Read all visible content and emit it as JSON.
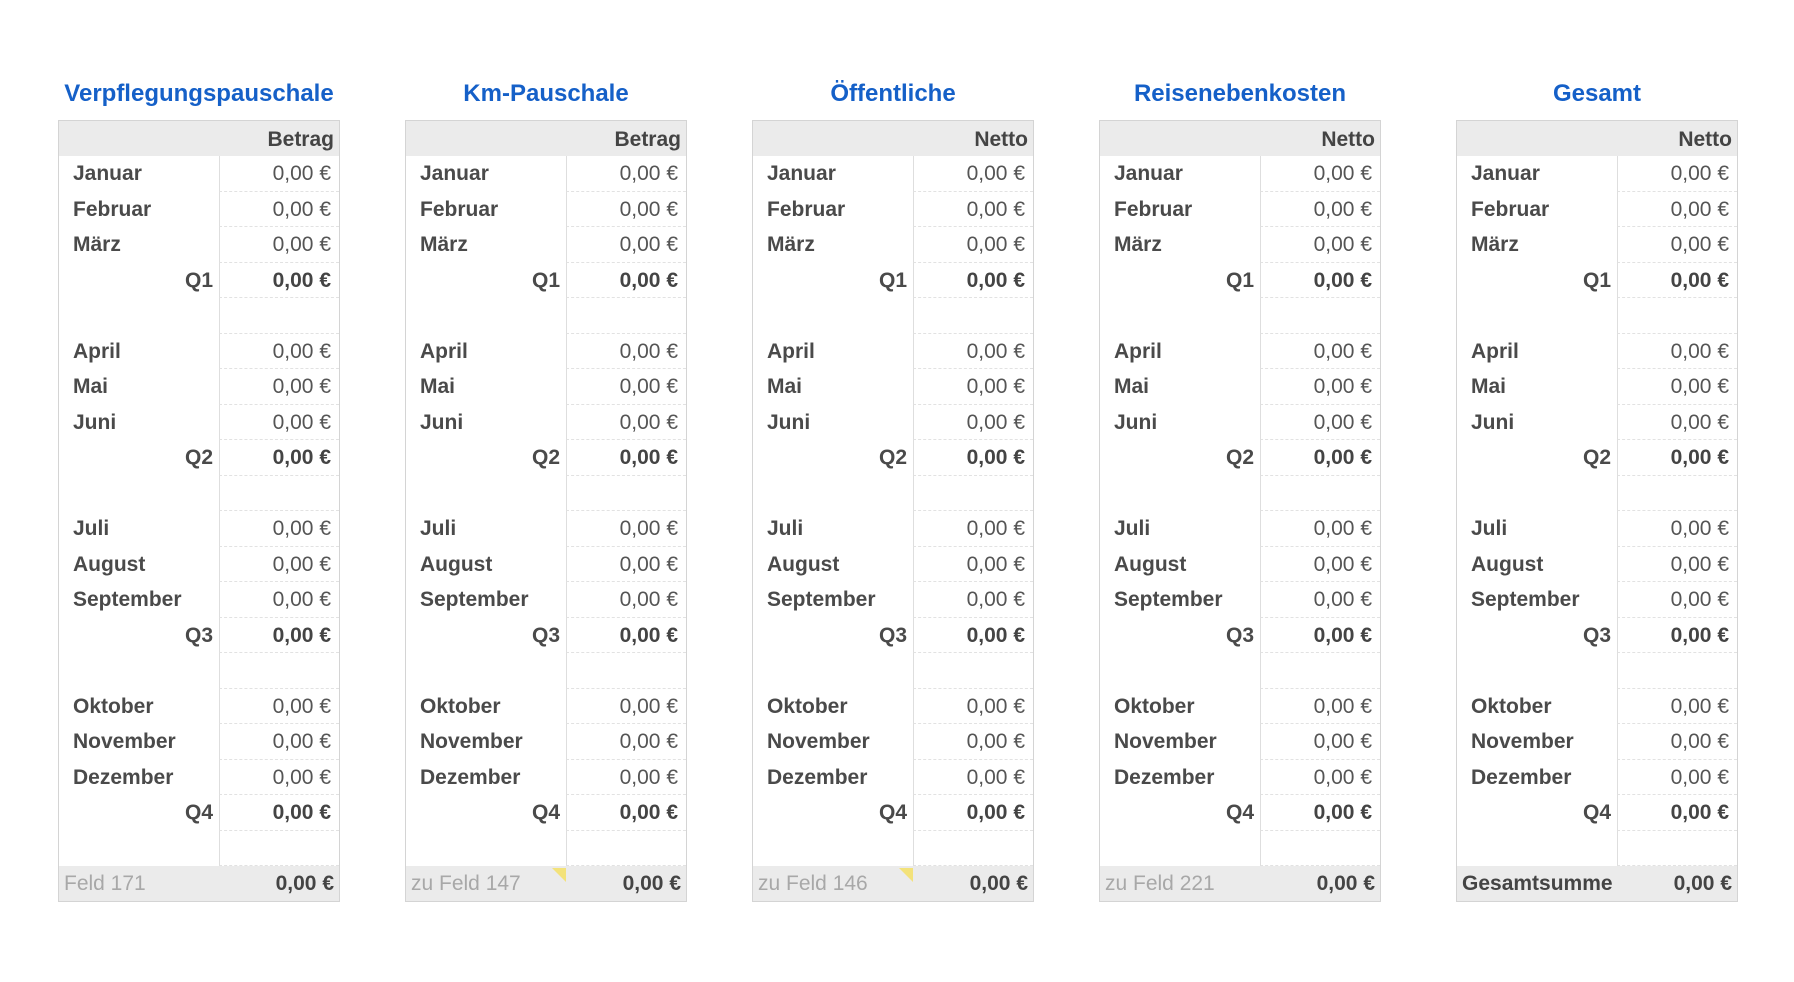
{
  "tables": [
    {
      "title": "Verpflegungspauschale",
      "header": "Betrag",
      "quarters": [
        {
          "months": [
            {
              "label": "Januar",
              "value": "0,00 €"
            },
            {
              "label": "Februar",
              "value": "0,00 €"
            },
            {
              "label": "März",
              "value": "0,00 €"
            }
          ],
          "label": "Q1",
          "value": "0,00 €"
        },
        {
          "months": [
            {
              "label": "April",
              "value": "0,00 €"
            },
            {
              "label": "Mai",
              "value": "0,00 €"
            },
            {
              "label": "Juni",
              "value": "0,00 €"
            }
          ],
          "label": "Q2",
          "value": "0,00 €"
        },
        {
          "months": [
            {
              "label": "Juli",
              "value": "0,00 €"
            },
            {
              "label": "August",
              "value": "0,00 €"
            },
            {
              "label": "September",
              "value": "0,00 €"
            }
          ],
          "label": "Q3",
          "value": "0,00 €"
        },
        {
          "months": [
            {
              "label": "Oktober",
              "value": "0,00 €"
            },
            {
              "label": "November",
              "value": "0,00 €"
            },
            {
              "label": "Dezember",
              "value": "0,00 €"
            }
          ],
          "label": "Q4",
          "value": "0,00 €"
        }
      ],
      "footer": {
        "label": "Feld 171",
        "value": "0,00 €"
      }
    },
    {
      "title": "Km-Pauschale",
      "header": "Betrag",
      "quarters": [
        {
          "months": [
            {
              "label": "Januar",
              "value": "0,00 €"
            },
            {
              "label": "Februar",
              "value": "0,00 €"
            },
            {
              "label": "März",
              "value": "0,00 €"
            }
          ],
          "label": "Q1",
          "value": "0,00 €"
        },
        {
          "months": [
            {
              "label": "April",
              "value": "0,00 €"
            },
            {
              "label": "Mai",
              "value": "0,00 €"
            },
            {
              "label": "Juni",
              "value": "0,00 €"
            }
          ],
          "label": "Q2",
          "value": "0,00 €"
        },
        {
          "months": [
            {
              "label": "Juli",
              "value": "0,00 €"
            },
            {
              "label": "August",
              "value": "0,00 €"
            },
            {
              "label": "September",
              "value": "0,00 €"
            }
          ],
          "label": "Q3",
          "value": "0,00 €"
        },
        {
          "months": [
            {
              "label": "Oktober",
              "value": "0,00 €"
            },
            {
              "label": "November",
              "value": "0,00 €"
            },
            {
              "label": "Dezember",
              "value": "0,00 €"
            }
          ],
          "label": "Q4",
          "value": "0,00 €"
        }
      ],
      "footer": {
        "label": "zu Feld 147",
        "value": "0,00 €"
      }
    },
    {
      "title": "Öffentliche",
      "header": "Netto",
      "quarters": [
        {
          "months": [
            {
              "label": "Januar",
              "value": "0,00 €"
            },
            {
              "label": "Februar",
              "value": "0,00 €"
            },
            {
              "label": "März",
              "value": "0,00 €"
            }
          ],
          "label": "Q1",
          "value": "0,00 €"
        },
        {
          "months": [
            {
              "label": "April",
              "value": "0,00 €"
            },
            {
              "label": "Mai",
              "value": "0,00 €"
            },
            {
              "label": "Juni",
              "value": "0,00 €"
            }
          ],
          "label": "Q2",
          "value": "0,00 €"
        },
        {
          "months": [
            {
              "label": "Juli",
              "value": "0,00 €"
            },
            {
              "label": "August",
              "value": "0,00 €"
            },
            {
              "label": "September",
              "value": "0,00 €"
            }
          ],
          "label": "Q3",
          "value": "0,00 €"
        },
        {
          "months": [
            {
              "label": "Oktober",
              "value": "0,00 €"
            },
            {
              "label": "November",
              "value": "0,00 €"
            },
            {
              "label": "Dezember",
              "value": "0,00 €"
            }
          ],
          "label": "Q4",
          "value": "0,00 €"
        }
      ],
      "footer": {
        "label": "zu Feld 146",
        "value": "0,00 €"
      }
    },
    {
      "title": "Reisenebenkosten",
      "header": "Netto",
      "quarters": [
        {
          "months": [
            {
              "label": "Januar",
              "value": "0,00 €"
            },
            {
              "label": "Februar",
              "value": "0,00 €"
            },
            {
              "label": "März",
              "value": "0,00 €"
            }
          ],
          "label": "Q1",
          "value": "0,00 €"
        },
        {
          "months": [
            {
              "label": "April",
              "value": "0,00 €"
            },
            {
              "label": "Mai",
              "value": "0,00 €"
            },
            {
              "label": "Juni",
              "value": "0,00 €"
            }
          ],
          "label": "Q2",
          "value": "0,00 €"
        },
        {
          "months": [
            {
              "label": "Juli",
              "value": "0,00 €"
            },
            {
              "label": "August",
              "value": "0,00 €"
            },
            {
              "label": "September",
              "value": "0,00 €"
            }
          ],
          "label": "Q3",
          "value": "0,00 €"
        },
        {
          "months": [
            {
              "label": "Oktober",
              "value": "0,00 €"
            },
            {
              "label": "November",
              "value": "0,00 €"
            },
            {
              "label": "Dezember",
              "value": "0,00 €"
            }
          ],
          "label": "Q4",
          "value": "0,00 €"
        }
      ],
      "footer": {
        "label": "zu Feld 221",
        "value": "0,00 €"
      }
    },
    {
      "title": "Gesamt",
      "header": "Netto",
      "quarters": [
        {
          "months": [
            {
              "label": "Januar",
              "value": "0,00 €"
            },
            {
              "label": "Februar",
              "value": "0,00 €"
            },
            {
              "label": "März",
              "value": "0,00 €"
            }
          ],
          "label": "Q1",
          "value": "0,00 €"
        },
        {
          "months": [
            {
              "label": "April",
              "value": "0,00 €"
            },
            {
              "label": "Mai",
              "value": "0,00 €"
            },
            {
              "label": "Juni",
              "value": "0,00 €"
            }
          ],
          "label": "Q2",
          "value": "0,00 €"
        },
        {
          "months": [
            {
              "label": "Juli",
              "value": "0,00 €"
            },
            {
              "label": "August",
              "value": "0,00 €"
            },
            {
              "label": "September",
              "value": "0,00 €"
            }
          ],
          "label": "Q3",
          "value": "0,00 €"
        },
        {
          "months": [
            {
              "label": "Oktober",
              "value": "0,00 €"
            },
            {
              "label": "November",
              "value": "0,00 €"
            },
            {
              "label": "Dezember",
              "value": "0,00 €"
            }
          ],
          "label": "Q4",
          "value": "0,00 €"
        }
      ],
      "footer": {
        "label": "Gesamtsumme",
        "value": "0,00 €"
      }
    }
  ]
}
